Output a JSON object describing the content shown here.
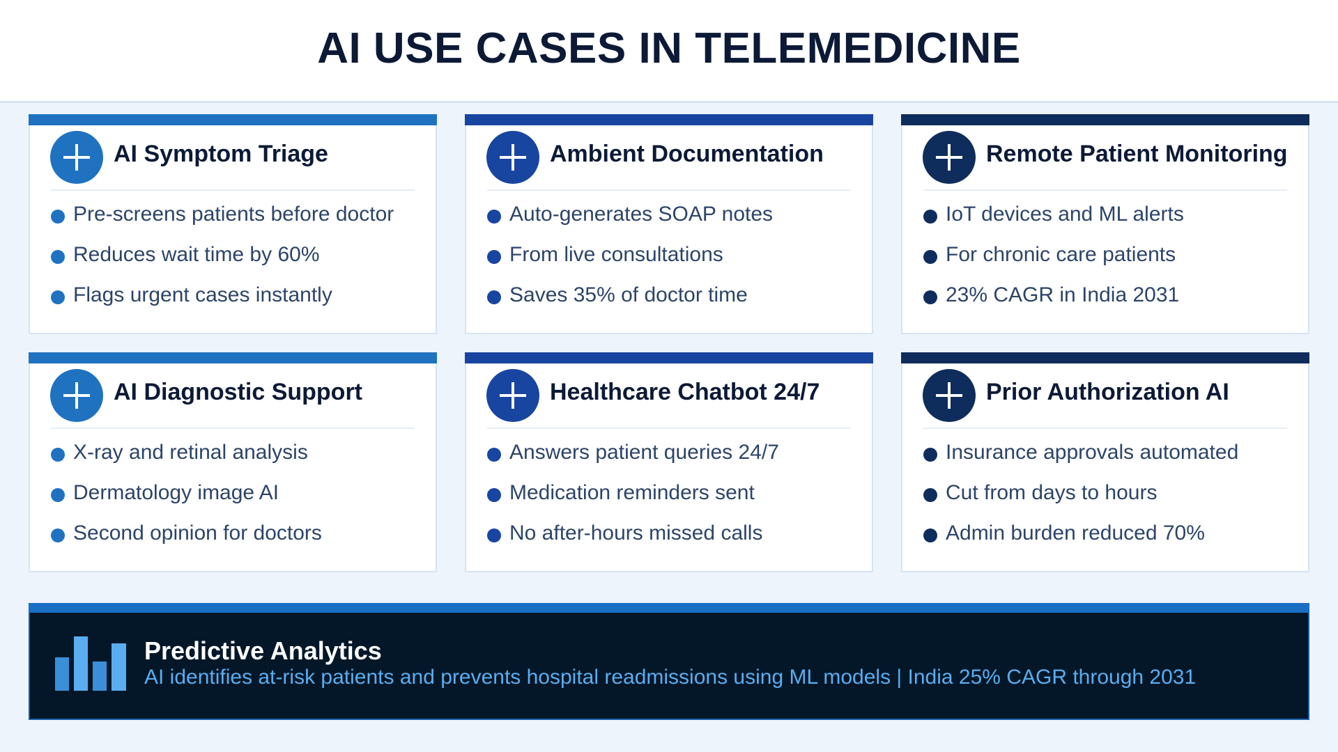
{
  "title": "AI USE CASES IN TELEMEDICINE",
  "cards": [
    {
      "title": "AI Symptom Triage",
      "icon": "plus-icon",
      "accent": "#1f72c0",
      "items": [
        "Pre-screens patients before doctor",
        "Reduces wait time by 60%",
        "Flags urgent cases instantly"
      ]
    },
    {
      "title": "Ambient Documentation",
      "icon": "plus-icon",
      "accent": "#1845a0",
      "items": [
        "Auto-generates SOAP notes",
        "From live consultations",
        "Saves 35% of doctor time"
      ]
    },
    {
      "title": "Remote Patient Monitoring",
      "icon": "plus-icon",
      "accent": "#0f2d5c",
      "items": [
        "IoT devices and ML alerts",
        "For chronic care patients",
        "23% CAGR in India 2031"
      ]
    },
    {
      "title": "AI Diagnostic Support",
      "icon": "plus-icon",
      "accent": "#1f72c0",
      "items": [
        "X-ray and retinal analysis",
        "Dermatology image AI",
        "Second opinion for doctors"
      ]
    },
    {
      "title": "Healthcare Chatbot 24/7",
      "icon": "plus-icon",
      "accent": "#1845a0",
      "items": [
        "Answers patient queries 24/7",
        "Medication reminders sent",
        "No after-hours missed calls"
      ]
    },
    {
      "title": "Prior Authorization AI",
      "icon": "plus-icon",
      "accent": "#0f2d5c",
      "items": [
        "Insurance approvals automated",
        "Cut from days to hours",
        "Admin burden reduced 70%"
      ]
    }
  ],
  "bottom": {
    "icon": "bar-chart-icon",
    "title": "Predictive Analytics",
    "description": "AI identifies at-risk patients and prevents hospital readmissions using ML models  |  India 25% CAGR through 2031"
  }
}
